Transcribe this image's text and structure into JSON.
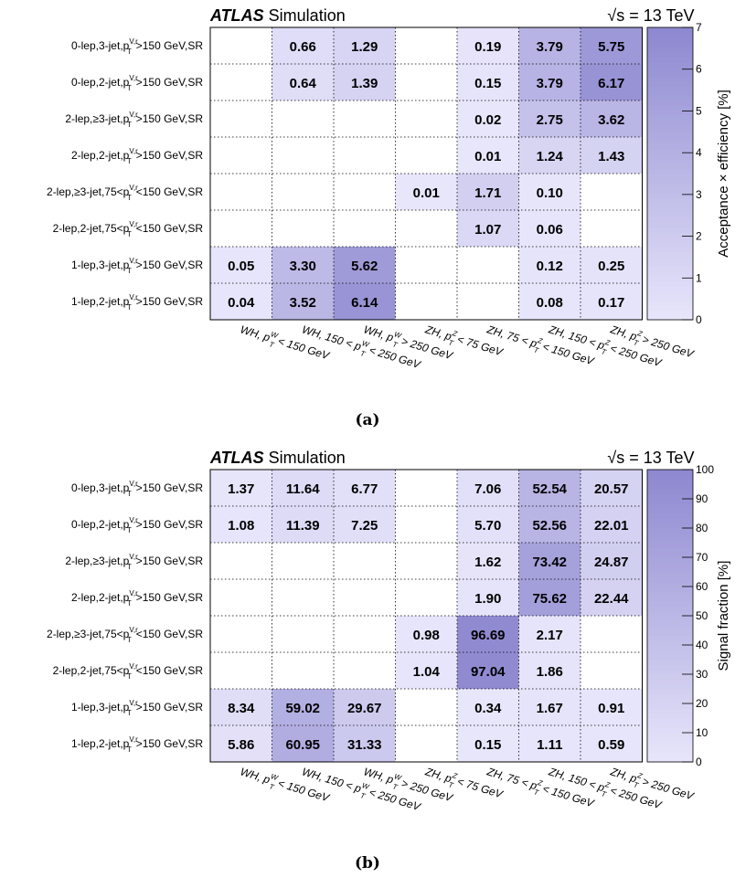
{
  "figure": {
    "panels": [
      {
        "caption": "(a)",
        "experiment": "ATLAS",
        "experiment_suffix": "Simulation",
        "energy_label": "√s = 13 TeV",
        "colorbar_label": "Acceptance × efficiency [%]"
      },
      {
        "caption": "(b)",
        "experiment": "ATLAS",
        "experiment_suffix": "Simulation",
        "energy_label": "√s = 13 TeV",
        "colorbar_label": "Signal fraction [%]"
      }
    ]
  },
  "chart_data": [
    {
      "type": "heatmap",
      "title": "",
      "x_categories": [
        {
          "main": "WH, p",
          "sub": "T",
          "sup": "W",
          "tail": " < 150 GeV"
        },
        {
          "main": "WH, 150 < p",
          "sub": "T",
          "sup": "W",
          "tail": " < 250 GeV"
        },
        {
          "main": "WH, p",
          "sub": "T",
          "sup": "W",
          "tail": " > 250 GeV"
        },
        {
          "main": "ZH, p",
          "sub": "T",
          "sup": "Z",
          "tail": " < 75 GeV"
        },
        {
          "main": "ZH, 75 < p",
          "sub": "T",
          "sup": "Z",
          "tail": " < 150 GeV"
        },
        {
          "main": "ZH, 150 < p",
          "sub": "T",
          "sup": "Z",
          "tail": " < 250 GeV"
        },
        {
          "main": "ZH, p",
          "sub": "T",
          "sup": "Z",
          "tail": " > 250 GeV"
        }
      ],
      "y_categories": [
        {
          "pre": "0-lep,3-jet,p",
          "sub": "T",
          "sup": "V,r",
          "post": ">150 GeV,SR"
        },
        {
          "pre": "0-lep,2-jet,p",
          "sub": "T",
          "sup": "V,r",
          "post": ">150 GeV,SR"
        },
        {
          "pre": "2-lep,≥3-jet,p",
          "sub": "T",
          "sup": "V,r",
          "post": ">150 GeV,SR"
        },
        {
          "pre": "2-lep,2-jet,p",
          "sub": "T",
          "sup": "V,r",
          "post": ">150 GeV,SR"
        },
        {
          "pre": "2-lep,≥3-jet,75<p",
          "sub": "T",
          "sup": "V,r",
          "post": "<150 GeV,SR"
        },
        {
          "pre": "2-lep,2-jet,75<p",
          "sub": "T",
          "sup": "V,r",
          "post": "<150 GeV,SR"
        },
        {
          "pre": "1-lep,3-jet,p",
          "sub": "T",
          "sup": "V,r",
          "post": ">150 GeV,SR"
        },
        {
          "pre": "1-lep,2-jet,p",
          "sub": "T",
          "sup": "V,r",
          "post": ">150 GeV,SR"
        }
      ],
      "values": [
        [
          null,
          "0.66",
          "1.29",
          null,
          "0.19",
          "3.79",
          "5.75"
        ],
        [
          null,
          "0.64",
          "1.39",
          null,
          "0.15",
          "3.79",
          "6.17"
        ],
        [
          null,
          null,
          null,
          null,
          "0.02",
          "2.75",
          "3.62"
        ],
        [
          null,
          null,
          null,
          null,
          "0.01",
          "1.24",
          "1.43"
        ],
        [
          null,
          null,
          null,
          "0.01",
          "1.71",
          "0.10",
          null
        ],
        [
          null,
          null,
          null,
          null,
          "1.07",
          "0.06",
          null
        ],
        [
          "0.05",
          "3.30",
          "5.62",
          null,
          null,
          "0.12",
          "0.25"
        ],
        [
          "0.04",
          "3.52",
          "6.14",
          null,
          null,
          "0.08",
          "0.17"
        ]
      ],
      "color_scale": {
        "min": 0,
        "max": 7,
        "ticks": [
          "0",
          "1",
          "2",
          "3",
          "4",
          "5",
          "6",
          "7"
        ],
        "low_color": "#e8e6fb",
        "high_color": "#8d88d0"
      },
      "zlabel": "Acceptance × efficiency [%]"
    },
    {
      "type": "heatmap",
      "title": "",
      "x_categories": [
        {
          "main": "WH, p",
          "sub": "T",
          "sup": "W",
          "tail": " < 150 GeV"
        },
        {
          "main": "WH, 150 < p",
          "sub": "T",
          "sup": "W",
          "tail": " < 250 GeV"
        },
        {
          "main": "WH, p",
          "sub": "T",
          "sup": "W",
          "tail": " > 250 GeV"
        },
        {
          "main": "ZH, p",
          "sub": "T",
          "sup": "Z",
          "tail": " < 75 GeV"
        },
        {
          "main": "ZH, 75 < p",
          "sub": "T",
          "sup": "Z",
          "tail": " < 150 GeV"
        },
        {
          "main": "ZH, 150 < p",
          "sub": "T",
          "sup": "Z",
          "tail": " < 250 GeV"
        },
        {
          "main": "ZH, p",
          "sub": "T",
          "sup": "Z",
          "tail": " > 250 GeV"
        }
      ],
      "y_categories": [
        {
          "pre": "0-lep,3-jet,p",
          "sub": "T",
          "sup": "V,r",
          "post": ">150 GeV,SR"
        },
        {
          "pre": "0-lep,2-jet,p",
          "sub": "T",
          "sup": "V,r",
          "post": ">150 GeV,SR"
        },
        {
          "pre": "2-lep,≥3-jet,p",
          "sub": "T",
          "sup": "V,r",
          "post": ">150 GeV,SR"
        },
        {
          "pre": "2-lep,2-jet,p",
          "sub": "T",
          "sup": "V,r",
          "post": ">150 GeV,SR"
        },
        {
          "pre": "2-lep,≥3-jet,75<p",
          "sub": "T",
          "sup": "V,r",
          "post": "<150 GeV,SR"
        },
        {
          "pre": "2-lep,2-jet,75<p",
          "sub": "T",
          "sup": "V,r",
          "post": "<150 GeV,SR"
        },
        {
          "pre": "1-lep,3-jet,p",
          "sub": "T",
          "sup": "V,r",
          "post": ">150 GeV,SR"
        },
        {
          "pre": "1-lep,2-jet,p",
          "sub": "T",
          "sup": "V,r",
          "post": ">150 GeV,SR"
        }
      ],
      "values": [
        [
          "1.37",
          "11.64",
          "6.77",
          null,
          "7.06",
          "52.54",
          "20.57"
        ],
        [
          "1.08",
          "11.39",
          "7.25",
          null,
          "5.70",
          "52.56",
          "22.01"
        ],
        [
          null,
          null,
          null,
          null,
          "1.62",
          "73.42",
          "24.87"
        ],
        [
          null,
          null,
          null,
          null,
          "1.90",
          "75.62",
          "22.44"
        ],
        [
          null,
          null,
          null,
          "0.98",
          "96.69",
          "2.17",
          null
        ],
        [
          null,
          null,
          null,
          "1.04",
          "97.04",
          "1.86",
          null
        ],
        [
          "8.34",
          "59.02",
          "29.67",
          null,
          "0.34",
          "1.67",
          "0.91"
        ],
        [
          "5.86",
          "60.95",
          "31.33",
          null,
          "0.15",
          "1.11",
          "0.59"
        ]
      ],
      "color_scale": {
        "min": 0,
        "max": 100,
        "ticks": [
          "0",
          "10",
          "20",
          "30",
          "40",
          "50",
          "60",
          "70",
          "80",
          "90",
          "100"
        ],
        "low_color": "#e8e6fb",
        "high_color": "#8d88d0"
      },
      "zlabel": "Signal fraction [%]"
    }
  ]
}
